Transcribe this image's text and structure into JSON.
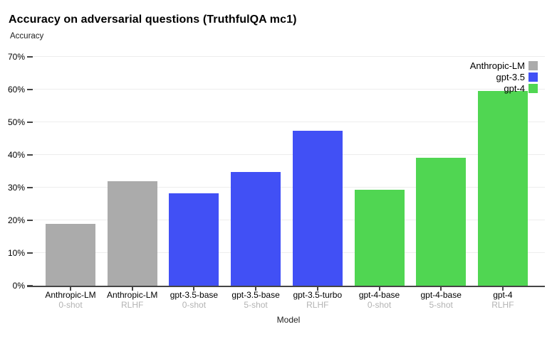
{
  "title": "Accuracy on adversarial questions (TruthfulQA mc1)",
  "y_axis_title": "Accuracy",
  "x_axis_title": "Model",
  "chart_data": {
    "type": "bar",
    "title": "Accuracy on adversarial questions (TruthfulQA mc1)",
    "xlabel": "Model",
    "ylabel": "Accuracy",
    "ylim": [
      0,
      70
    ],
    "grid": true,
    "yticks": [
      {
        "label": "0%",
        "value": 0
      },
      {
        "label": "10%",
        "value": 10
      },
      {
        "label": "20%",
        "value": 20
      },
      {
        "label": "30%",
        "value": 30
      },
      {
        "label": "40%",
        "value": 40
      },
      {
        "label": "50%",
        "value": 50
      },
      {
        "label": "60%",
        "value": 60
      },
      {
        "label": "70%",
        "value": 70
      }
    ],
    "series_colors": {
      "Anthropic-LM": "#ababab",
      "gpt-3.5": "#4150f5",
      "gpt-4": "#50d652"
    },
    "legend": {
      "position": "top-right",
      "entries": [
        {
          "label": "Anthropic-LM",
          "color": "#ababab"
        },
        {
          "label": "gpt-3.5",
          "color": "#4150f5"
        },
        {
          "label": "gpt-4",
          "color": "#50d652"
        }
      ]
    },
    "bars": [
      {
        "model": "Anthropic-LM",
        "variant": "0-shot",
        "group": "Anthropic-LM",
        "value": 19.0
      },
      {
        "model": "Anthropic-LM",
        "variant": "RLHF",
        "group": "Anthropic-LM",
        "value": 32.0
      },
      {
        "model": "gpt-3.5-base",
        "variant": "0-shot",
        "group": "gpt-3.5",
        "value": 28.3
      },
      {
        "model": "gpt-3.5-base",
        "variant": "5-shot",
        "group": "gpt-3.5",
        "value": 34.8
      },
      {
        "model": "gpt-3.5-turbo",
        "variant": "RLHF",
        "group": "gpt-3.5",
        "value": 47.4
      },
      {
        "model": "gpt-4-base",
        "variant": "0-shot",
        "group": "gpt-4",
        "value": 29.4
      },
      {
        "model": "gpt-4-base",
        "variant": "5-shot",
        "group": "gpt-4",
        "value": 39.1
      },
      {
        "model": "gpt-4",
        "variant": "RLHF",
        "group": "gpt-4",
        "value": 59.5
      }
    ]
  }
}
